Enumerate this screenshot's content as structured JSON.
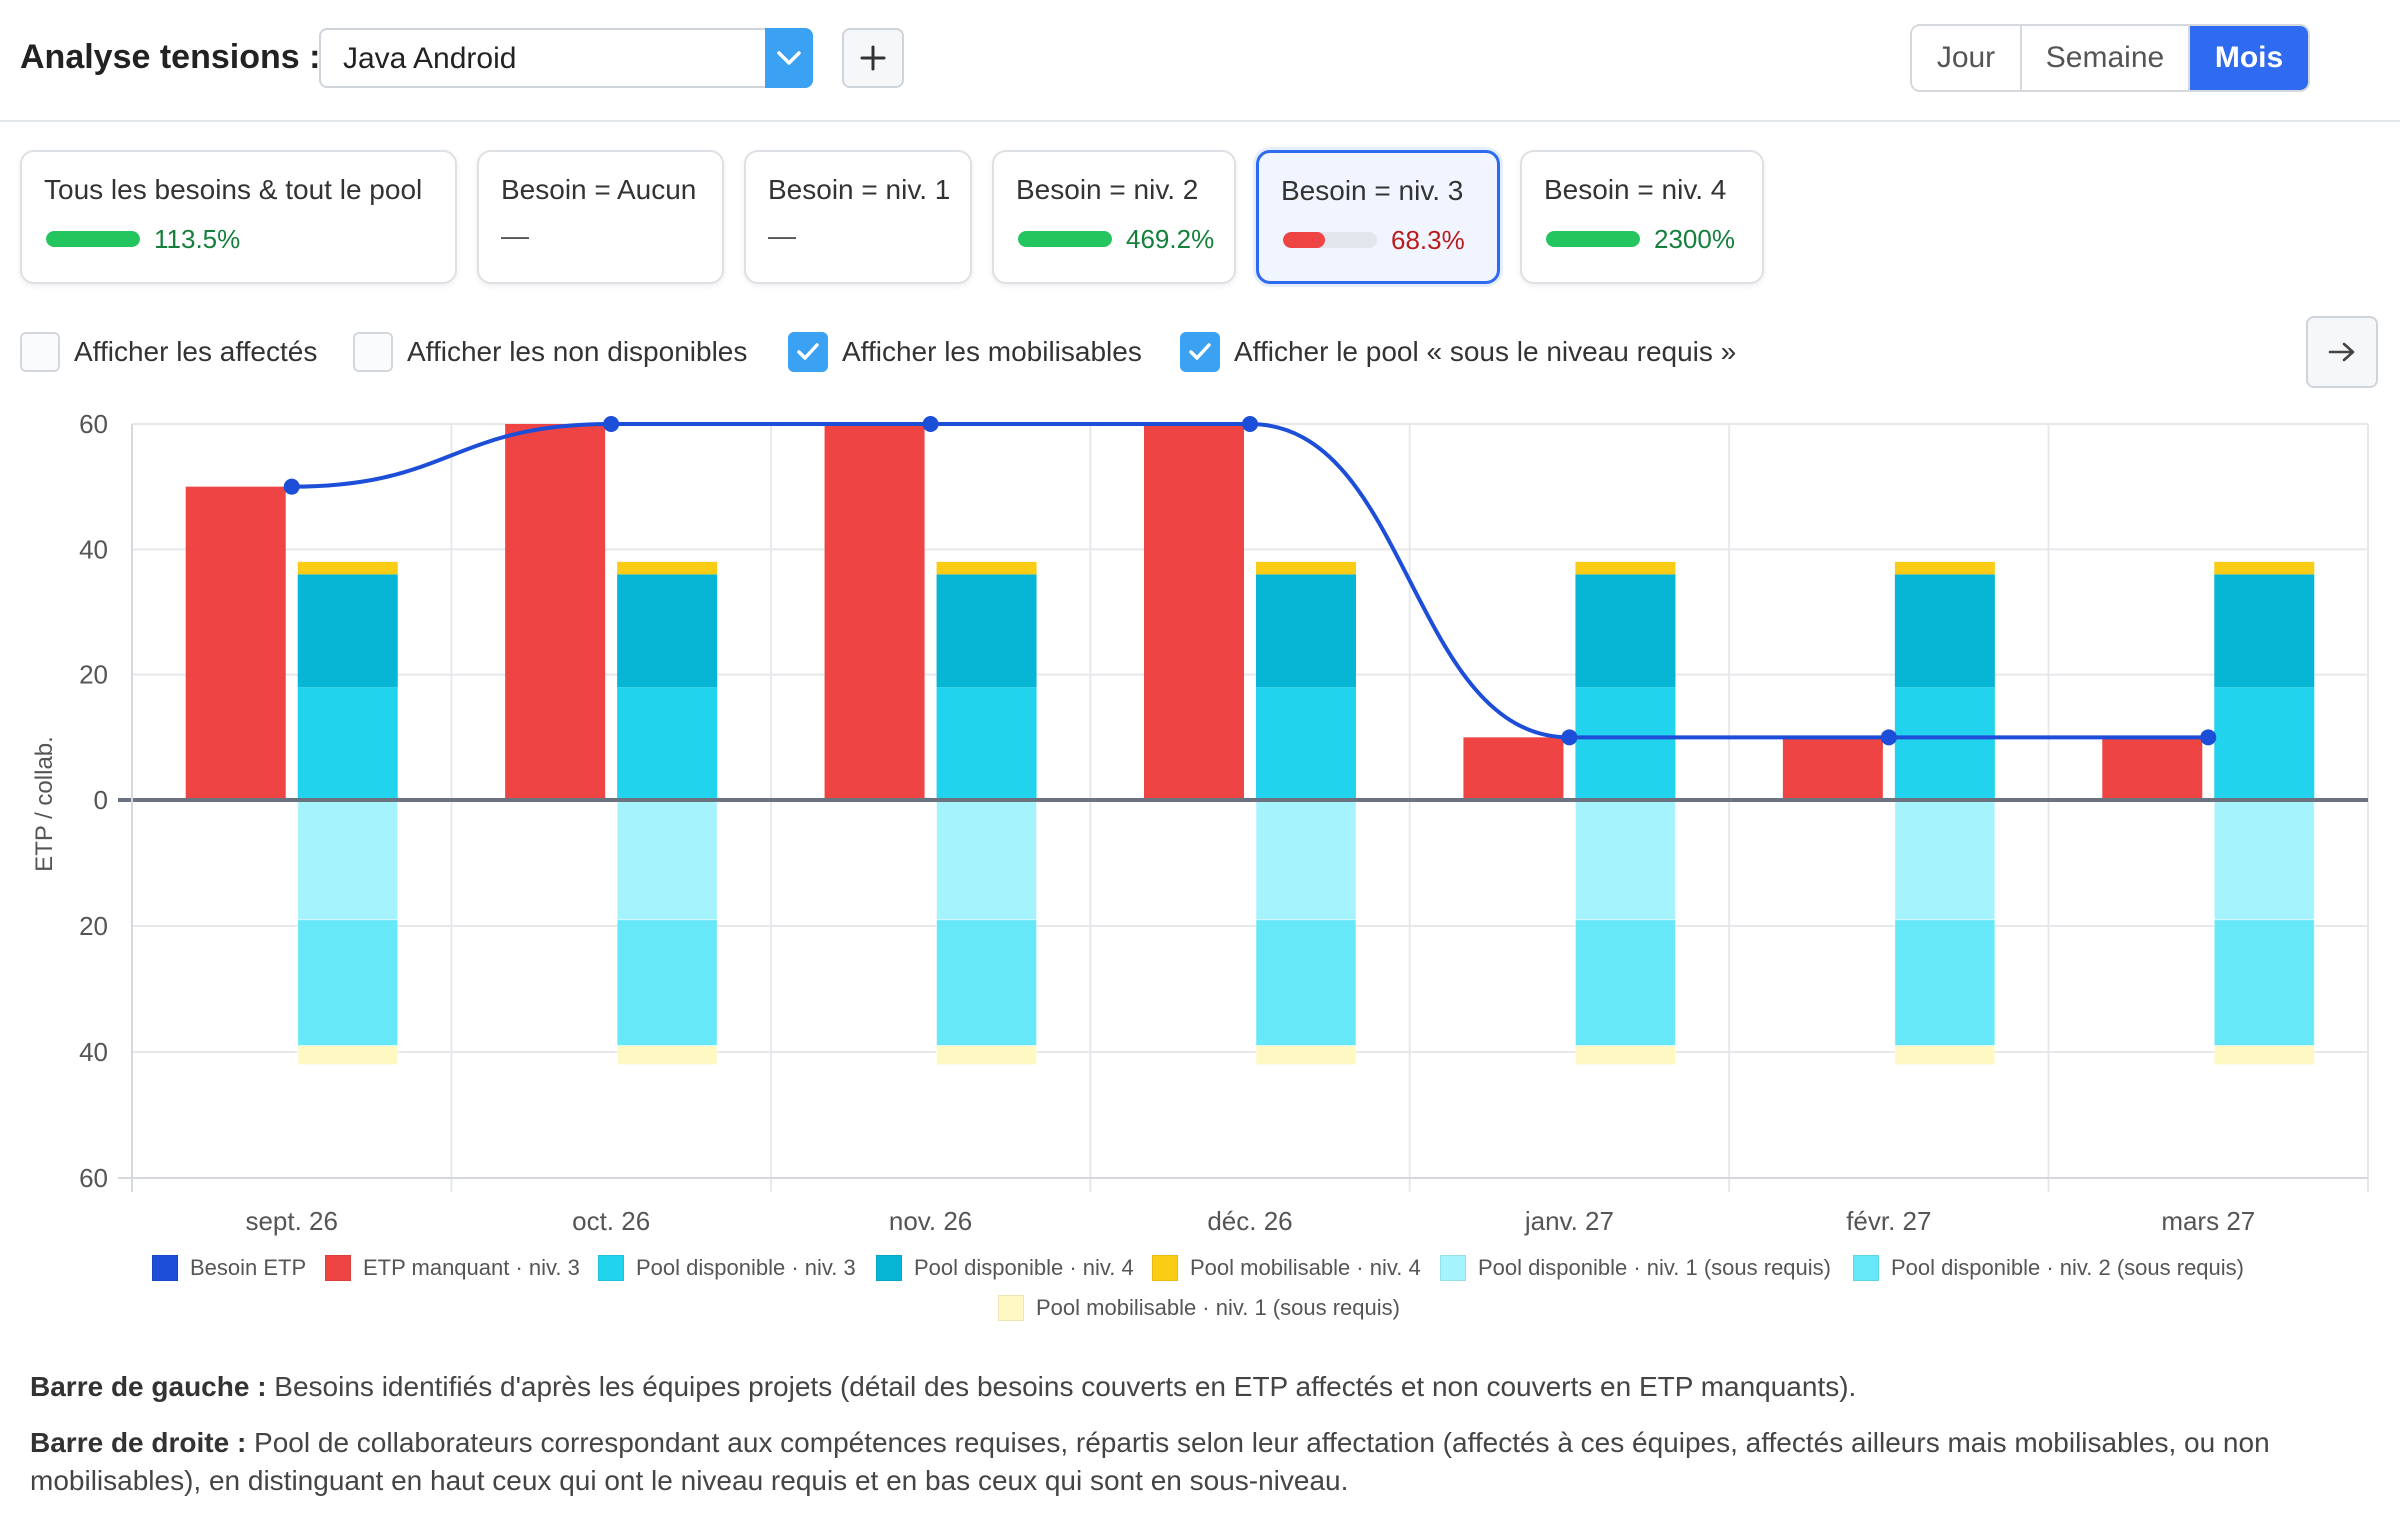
{
  "header": {
    "title": "Analyse tensions :",
    "select_value": "Java Android",
    "add_label": "+",
    "period_tabs": [
      {
        "label": "Jour",
        "active": false
      },
      {
        "label": "Semaine",
        "active": false
      },
      {
        "label": "Mois",
        "active": true
      }
    ]
  },
  "cards": [
    {
      "label": "Tous les besoins & tout le pool",
      "value": "113.5%",
      "fill": 1.0,
      "color": "#22c55e",
      "value_color": "#15803d"
    },
    {
      "label": "Besoin = Aucun",
      "value": "—",
      "fill": null
    },
    {
      "label": "Besoin = niv. 1",
      "value": "—",
      "fill": null
    },
    {
      "label": "Besoin = niv. 2",
      "value": "469.2%",
      "fill": 1.0,
      "color": "#22c55e",
      "value_color": "#15803d"
    },
    {
      "label": "Besoin = niv. 3",
      "value": "68.3%",
      "fill": 0.45,
      "color": "#ef4444",
      "value_color": "#b91c1c",
      "selected": true
    },
    {
      "label": "Besoin = niv. 4",
      "value": "2300%",
      "fill": 1.0,
      "color": "#22c55e",
      "value_color": "#15803d"
    }
  ],
  "checkboxes": [
    {
      "label": "Afficher les affectés",
      "checked": false
    },
    {
      "label": "Afficher les non disponibles",
      "checked": false
    },
    {
      "label": "Afficher les mobilisables",
      "checked": true
    },
    {
      "label": "Afficher le pool « sous le niveau requis »",
      "checked": true
    }
  ],
  "next_icon": "arrow-right-icon",
  "chart_data": {
    "type": "bar",
    "ylabel": "ETP / collab.",
    "ylim": [
      -60,
      60
    ],
    "yticks": [
      60,
      40,
      20,
      0,
      20,
      40,
      60
    ],
    "categories": [
      "sept. 26",
      "oct. 26",
      "nov. 26",
      "déc. 26",
      "janv. 27",
      "févr. 27",
      "mars 27"
    ],
    "besoin_line": {
      "name": "Besoin ETP",
      "color": "#1d4ed8",
      "values": [
        50,
        60,
        60,
        60,
        10,
        10,
        10
      ]
    },
    "left_bar": {
      "name": "ETP manquant · niv. 3",
      "color": "#ef4444",
      "values": [
        50,
        60,
        60,
        60,
        10,
        10,
        10
      ]
    },
    "right_stack_up": [
      {
        "name": "Pool disponible · niv. 3",
        "color": "#22d3ee",
        "values": [
          18,
          18,
          18,
          18,
          18,
          18,
          18
        ]
      },
      {
        "name": "Pool disponible · niv. 4",
        "color": "#06b6d4",
        "values": [
          18,
          18,
          18,
          18,
          18,
          18,
          18
        ]
      },
      {
        "name": "Pool mobilisable · niv. 4",
        "color": "#facc15",
        "values": [
          2,
          2,
          2,
          2,
          2,
          2,
          2
        ]
      }
    ],
    "right_stack_down": [
      {
        "name": "Pool disponible · niv. 1 (sous requis)",
        "color": "#a5f3fc",
        "values": [
          19,
          19,
          19,
          19,
          19,
          19,
          19
        ]
      },
      {
        "name": "Pool disponible · niv. 2 (sous requis)",
        "color": "#67e8f9",
        "values": [
          20,
          20,
          20,
          20,
          20,
          20,
          20
        ]
      },
      {
        "name": "Pool mobilisable · niv. 1 (sous requis)",
        "color": "#fef9c3",
        "values": [
          3,
          3,
          3,
          3,
          3,
          3,
          3
        ]
      }
    ],
    "grid": true,
    "legend_position": "bottom"
  },
  "legend": [
    {
      "label": "Besoin ETP",
      "color": "#1d4ed8"
    },
    {
      "label": "ETP manquant · niv. 3",
      "color": "#ef4444"
    },
    {
      "label": "Pool disponible · niv. 3",
      "color": "#22d3ee"
    },
    {
      "label": "Pool disponible · niv. 4",
      "color": "#06b6d4"
    },
    {
      "label": "Pool mobilisable · niv. 4",
      "color": "#facc15"
    },
    {
      "label": "Pool disponible · niv. 1 (sous requis)",
      "color": "#a5f3fc"
    },
    {
      "label": "Pool disponible · niv. 2 (sous requis)",
      "color": "#67e8f9"
    },
    {
      "label": "Pool mobilisable · niv. 1 (sous requis)",
      "color": "#fef9c3"
    }
  ],
  "notes": {
    "left_title": "Barre de gauche :",
    "left_text": " Besoins identifiés d'après les équipes projets (détail des besoins couverts en ETP affectés et non couverts en ETP manquants).",
    "right_title": "Barre de droite :",
    "right_text": " Pool de collaborateurs correspondant aux compétences requises, répartis selon leur affectation (affectés à ces équipes, affectés ailleurs mais mobilisables, ou non mobilisables), en distinguant en haut ceux qui ont le niveau requis et en bas ceux qui sont en sous-niveau."
  }
}
